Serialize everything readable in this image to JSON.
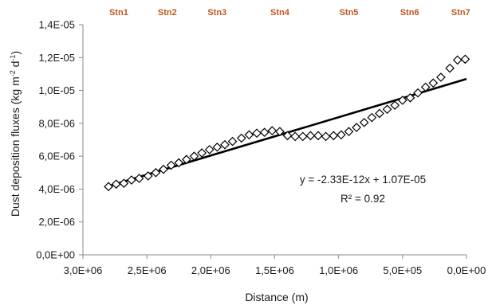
{
  "chart_data": {
    "type": "scatter",
    "xlabel": "Distance (m)",
    "ylabel_main": "Dust deposition fluxes (kg m",
    "ylabel_sup1": "-2",
    "ylabel_mid": " d",
    "ylabel_sup2": "-1",
    "ylabel_end": ")",
    "x_reversed": true,
    "xlim": [
      0,
      3000000
    ],
    "ylim": [
      0,
      1.4e-05
    ],
    "grid": false,
    "legend": "none",
    "x_ticks": [
      {
        "value": 3000000,
        "label": "3,0E+06"
      },
      {
        "value": 2500000,
        "label": "2,5E+06"
      },
      {
        "value": 2000000,
        "label": "2,0E+06"
      },
      {
        "value": 1500000,
        "label": "1,5E+06"
      },
      {
        "value": 1000000,
        "label": "1,0E+06"
      },
      {
        "value": 500000,
        "label": "5,0E+05"
      },
      {
        "value": 0,
        "label": "0,0E+00"
      }
    ],
    "y_ticks": [
      {
        "value": 0,
        "label": "0,0E+00"
      },
      {
        "value": 2e-06,
        "label": "2,0E-06"
      },
      {
        "value": 4e-06,
        "label": "4,0E-06"
      },
      {
        "value": 6e-06,
        "label": "6,0E-06"
      },
      {
        "value": 8e-06,
        "label": "8,0E-06"
      },
      {
        "value": 1e-05,
        "label": "1,0E-05"
      },
      {
        "value": 1.2e-05,
        "label": "1,2E-05"
      },
      {
        "value": 1.4e-05,
        "label": "1,4E-05"
      }
    ],
    "stations": [
      {
        "label": "Stn1",
        "x": 2720000
      },
      {
        "label": "Stn2",
        "x": 2340000
      },
      {
        "label": "Stn3",
        "x": 1950000
      },
      {
        "label": "Stn4",
        "x": 1460000
      },
      {
        "label": "Stn5",
        "x": 920000
      },
      {
        "label": "Stn6",
        "x": 445000
      },
      {
        "label": "Stn7",
        "x": 45000
      }
    ],
    "station_color": "#c0571f",
    "series": [
      {
        "marker": "diamond-open",
        "points": [
          [
            2800000,
            4.15e-06
          ],
          [
            2740000,
            4.3e-06
          ],
          [
            2680000,
            4.35e-06
          ],
          [
            2620000,
            4.55e-06
          ],
          [
            2560000,
            4.65e-06
          ],
          [
            2490000,
            4.8e-06
          ],
          [
            2430000,
            5e-06
          ],
          [
            2370000,
            5.2e-06
          ],
          [
            2310000,
            5.45e-06
          ],
          [
            2250000,
            5.6e-06
          ],
          [
            2190000,
            5.8e-06
          ],
          [
            2130000,
            6e-06
          ],
          [
            2070000,
            6.2e-06
          ],
          [
            2010000,
            6.4e-06
          ],
          [
            1950000,
            6.55e-06
          ],
          [
            1890000,
            6.7e-06
          ],
          [
            1830000,
            6.9e-06
          ],
          [
            1760000,
            7.1e-06
          ],
          [
            1700000,
            7.3e-06
          ],
          [
            1640000,
            7.4e-06
          ],
          [
            1580000,
            7.45e-06
          ],
          [
            1520000,
            7.55e-06
          ],
          [
            1460000,
            7.5e-06
          ],
          [
            1400000,
            7.25e-06
          ],
          [
            1340000,
            7.2e-06
          ],
          [
            1280000,
            7.2e-06
          ],
          [
            1220000,
            7.25e-06
          ],
          [
            1160000,
            7.25e-06
          ],
          [
            1100000,
            7.2e-06
          ],
          [
            1040000,
            7.25e-06
          ],
          [
            980000,
            7.3e-06
          ],
          [
            920000,
            7.5e-06
          ],
          [
            860000,
            7.75e-06
          ],
          [
            800000,
            8.05e-06
          ],
          [
            740000,
            8.35e-06
          ],
          [
            680000,
            8.6e-06
          ],
          [
            620000,
            8.85e-06
          ],
          [
            560000,
            9.1e-06
          ],
          [
            500000,
            9.4e-06
          ],
          [
            440000,
            9.55e-06
          ],
          [
            380000,
            9.85e-06
          ],
          [
            320000,
            1.02e-05
          ],
          [
            260000,
            1.045e-05
          ],
          [
            200000,
            1.08e-05
          ],
          [
            130000,
            1.135e-05
          ],
          [
            70000,
            1.185e-05
          ],
          [
            10000,
            1.19e-05
          ]
        ]
      }
    ],
    "trendline": {
      "slope": -2.33e-12,
      "intercept": 1.07e-05,
      "x_from": 2800000,
      "x_to": 0
    },
    "annotations": {
      "equation": "y = -2.33E-12x + 1.07E-05",
      "r2": "R² = 0.92"
    }
  }
}
